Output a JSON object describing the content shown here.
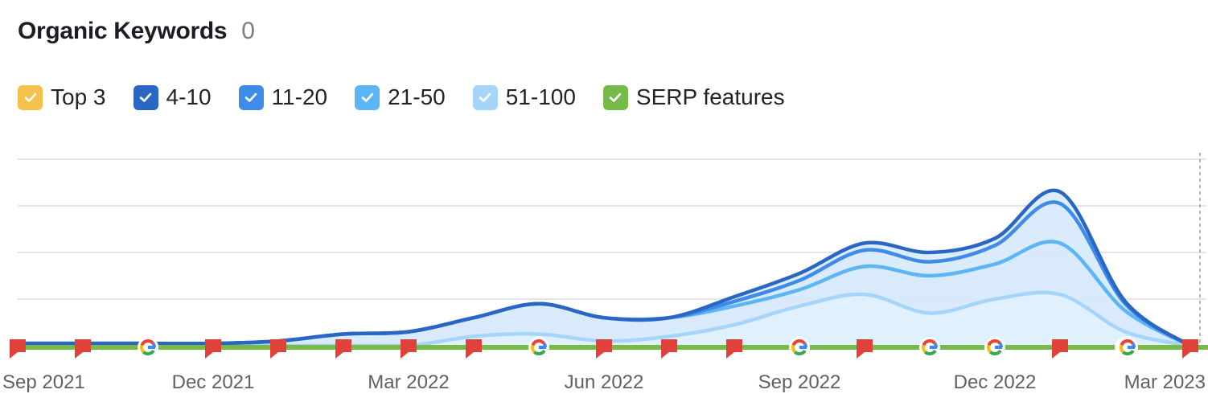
{
  "header": {
    "title": "Organic Keywords",
    "count": "0"
  },
  "legend": [
    {
      "label": "Top 3",
      "color": "#f5c04b"
    },
    {
      "label": "4-10",
      "color": "#2a66c4"
    },
    {
      "label": "11-20",
      "color": "#3e8ce8"
    },
    {
      "label": "21-50",
      "color": "#5cb5f5"
    },
    {
      "label": "51-100",
      "color": "#a6d5fb"
    },
    {
      "label": "SERP features",
      "color": "#76bb47"
    }
  ],
  "colors": {
    "grid": "#e3e5e8",
    "area_fill": "#d7eafc",
    "area_fill_light": "#e9f4fe",
    "serp_line": "#76bb47",
    "flag": "#e0413b"
  },
  "chart_data": {
    "type": "area",
    "title": "",
    "x": [
      "Sep 2021",
      "Oct 2021",
      "Nov 2021",
      "Dec 2021",
      "Jan 2022",
      "Feb 2022",
      "Mar 2022",
      "Apr 2022",
      "May 2022",
      "Jun 2022",
      "Jul 2022",
      "Aug 2022",
      "Sep 2022",
      "Oct 2022",
      "Nov 2022",
      "Dec 2022",
      "Jan 2023",
      "Feb 2023",
      "Mar 2023"
    ],
    "x_tick_labels": [
      "Sep 2021",
      "Dec 2021",
      "Mar 2022",
      "Jun 2022",
      "Sep 2022",
      "Dec 2022",
      "Mar 2023"
    ],
    "series": [
      {
        "name": "Top 3",
        "values": [
          0,
          0,
          0,
          0,
          0,
          0,
          0,
          0,
          0,
          0,
          0,
          0,
          0,
          0,
          0,
          0,
          0,
          0,
          0
        ]
      },
      {
        "name": "4-10",
        "values": [
          0.1,
          0.1,
          0.1,
          0.1,
          0.2,
          0.5,
          0.6,
          1.2,
          1.8,
          1.2,
          1.2,
          2.1,
          3.1,
          4.4,
          4.0,
          4.6,
          6.6,
          1.9,
          0
        ]
      },
      {
        "name": "11-20",
        "values": [
          0.1,
          0.1,
          0.1,
          0.1,
          0.2,
          0.5,
          0.6,
          1.2,
          1.8,
          1.2,
          1.2,
          1.9,
          2.8,
          4.1,
          3.6,
          4.3,
          6.1,
          1.8,
          0
        ]
      },
      {
        "name": "21-50",
        "values": [
          0.1,
          0.1,
          0.1,
          0.1,
          0.2,
          0.5,
          0.6,
          1.2,
          1.8,
          1.2,
          1.2,
          1.7,
          2.4,
          3.4,
          3.0,
          3.5,
          4.4,
          1.5,
          0
        ]
      },
      {
        "name": "51-100",
        "values": [
          0,
          0,
          0,
          0,
          0,
          0,
          0,
          0.4,
          0.5,
          0.2,
          0.4,
          0.9,
          1.7,
          2.2,
          1.4,
          2.0,
          2.2,
          0.6,
          0
        ]
      }
    ],
    "serp_feature_markers": [
      {
        "x": "Sep 2021",
        "icon": "flag"
      },
      {
        "x": "Oct 2021",
        "icon": "flag"
      },
      {
        "x": "Nov 2021",
        "icon": "google"
      },
      {
        "x": "Dec 2021",
        "icon": "flag"
      },
      {
        "x": "Jan 2022",
        "icon": "flag"
      },
      {
        "x": "Feb 2022",
        "icon": "flag"
      },
      {
        "x": "Mar 2022",
        "icon": "flag"
      },
      {
        "x": "Apr 2022",
        "icon": "flag"
      },
      {
        "x": "May 2022",
        "icon": "google"
      },
      {
        "x": "Jun 2022",
        "icon": "flag"
      },
      {
        "x": "Jul 2022",
        "icon": "flag"
      },
      {
        "x": "Aug 2022",
        "icon": "flag"
      },
      {
        "x": "Sep 2022",
        "icon": "google"
      },
      {
        "x": "Oct 2022",
        "icon": "flag"
      },
      {
        "x": "Nov 2022",
        "icon": "google"
      },
      {
        "x": "Dec 2022",
        "icon": "google"
      },
      {
        "x": "Jan 2023",
        "icon": "flag"
      },
      {
        "x": "Feb 2023",
        "icon": "google"
      },
      {
        "x": "Mar 2023",
        "icon": "google"
      },
      {
        "x": "Mar 2023",
        "icon": "flag"
      }
    ],
    "ylim": [
      0,
      8
    ],
    "grid": true,
    "legend_position": "top-left"
  }
}
